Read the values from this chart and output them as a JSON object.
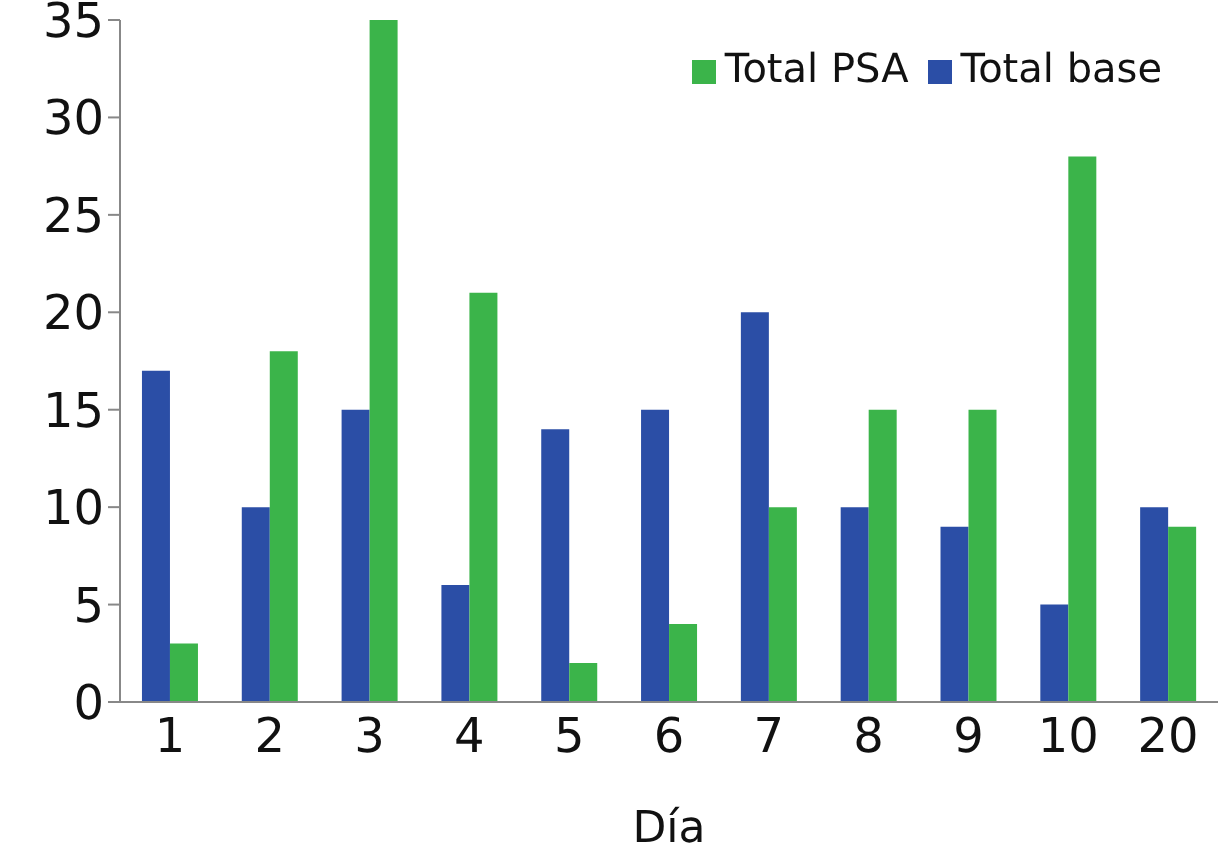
{
  "chart_data": {
    "type": "bar",
    "xlabel": "Día",
    "categories": [
      "1",
      "2",
      "3",
      "4",
      "5",
      "6",
      "7",
      "8",
      "9",
      "10",
      "20"
    ],
    "series": [
      {
        "name": "Total base",
        "color": "#2b4ea6",
        "values": [
          17,
          10,
          15,
          6,
          14,
          15,
          20,
          10,
          9,
          5,
          10
        ]
      },
      {
        "name": "Total PSA",
        "color": "#3bb44a",
        "values": [
          3,
          18,
          35,
          21,
          2,
          4,
          10,
          15,
          15,
          28,
          9
        ]
      }
    ],
    "ylim": [
      0,
      35
    ],
    "yticks": [
      0,
      5,
      10,
      15,
      20,
      25,
      30,
      35
    ],
    "grid": false,
    "legend": "top right"
  }
}
